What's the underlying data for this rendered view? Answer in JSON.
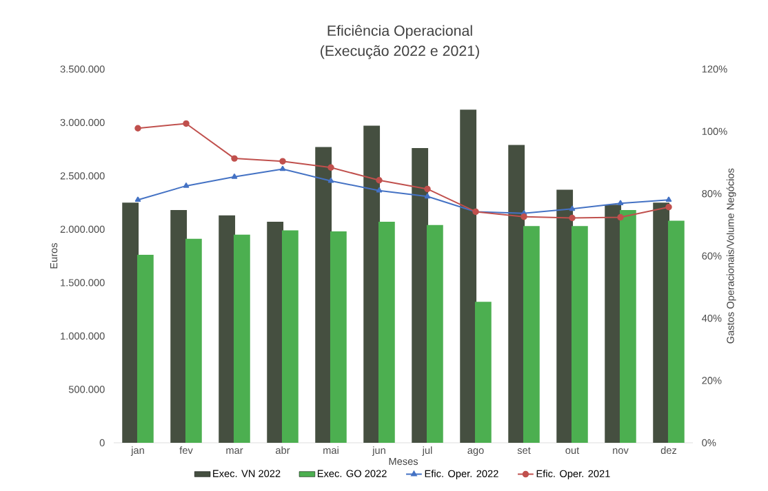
{
  "chart_data": {
    "type": "bar",
    "title": "Eficiência Operacional",
    "subtitle": "(Execução 2022 e 2021)",
    "xlabel": "Meses",
    "ylabel": "Euros",
    "y2label": "Gastos Operacionais/Volume Negócios",
    "categories": [
      "jan",
      "fev",
      "mar",
      "abr",
      "mai",
      "jun",
      "jul",
      "ago",
      "set",
      "out",
      "nov",
      "dez"
    ],
    "series": [
      {
        "name": "Exec. VN 2022",
        "color": "#454f40",
        "values": [
          2250000,
          2180000,
          2130000,
          2070000,
          2770000,
          2970000,
          2760000,
          3120000,
          2790000,
          2370000,
          2230000,
          2250000
        ]
      },
      {
        "name": "Exec. GO 2022",
        "color": "#4caf50",
        "values": [
          1760000,
          1910000,
          1950000,
          1990000,
          1980000,
          2070000,
          2040000,
          1320000,
          2030000,
          2030000,
          2180000,
          2080000
        ]
      },
      {
        "name": "Efic. Oper. 2022",
        "type": "line",
        "axis": "y2",
        "marker": "triangle",
        "color": "#4472c4",
        "values": [
          78,
          82.5,
          85.4,
          87.9,
          84.1,
          81,
          79.1,
          74.2,
          73.7,
          75.1,
          76.9,
          78
        ]
      },
      {
        "name": "Efic. Oper. 2021",
        "type": "line",
        "axis": "y2",
        "marker": "circle",
        "color": "#c0504d",
        "values": [
          101,
          102.5,
          91.3,
          90.4,
          88.4,
          84.3,
          81.5,
          74.2,
          72.6,
          72.2,
          72.4,
          75.7
        ]
      }
    ],
    "ylim": [
      0,
      3500000
    ],
    "yticks": [
      0,
      {
        "value": 500000,
        "label": "500.000"
      },
      {
        "value": 1000000,
        "label": "1.000.000"
      },
      {
        "value": 1500000,
        "label": "1.500.000"
      },
      {
        "value": 2000000,
        "label": "2.000.000"
      },
      {
        "value": 2500000,
        "label": "2.500.000"
      },
      {
        "value": 3000000,
        "label": "3.000.000"
      },
      {
        "value": 3500000,
        "label": "3.500.000"
      }
    ],
    "y2lim": [
      0,
      120
    ],
    "y2ticks": [
      {
        "value": 0,
        "label": "0%"
      },
      {
        "value": 20,
        "label": "20%"
      },
      {
        "value": 40,
        "label": "40%"
      },
      {
        "value": 60,
        "label": "60%"
      },
      {
        "value": 80,
        "label": "80%"
      },
      {
        "value": 100,
        "label": "100%"
      },
      {
        "value": 120,
        "label": "120%"
      }
    ],
    "legend": "bottom"
  }
}
